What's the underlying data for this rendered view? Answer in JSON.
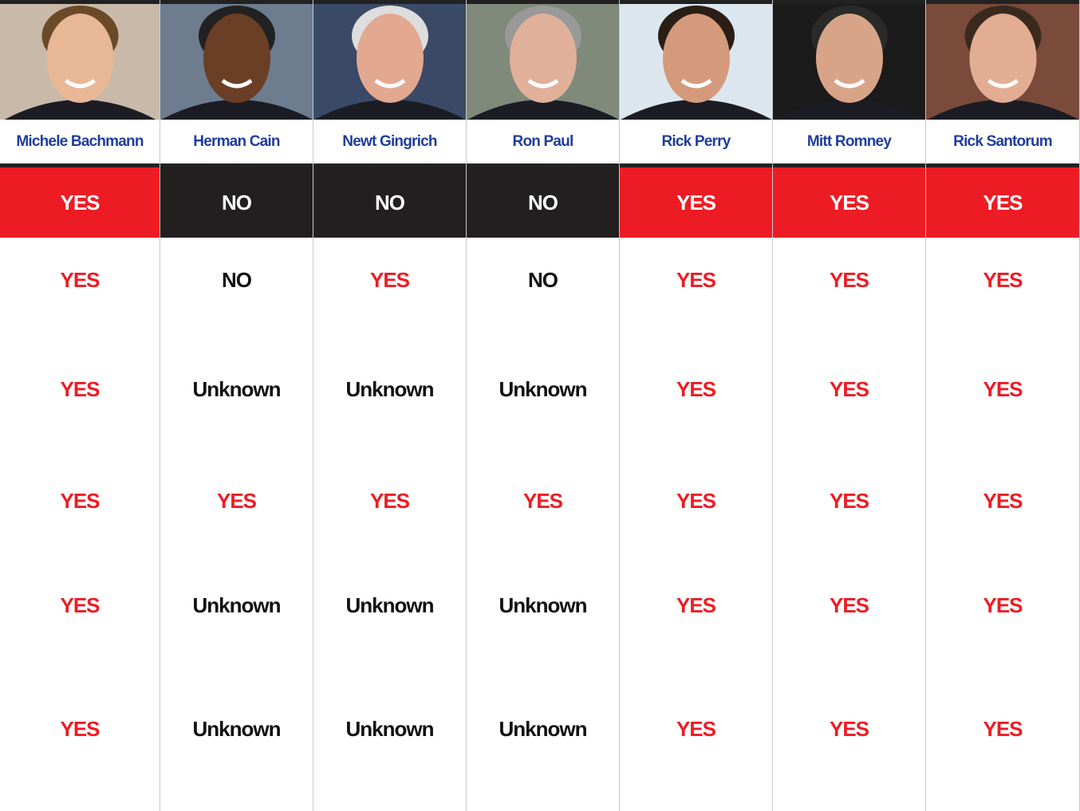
{
  "columns": [
    "Michele Bachmann",
    "Herman Cain",
    "Newt Gingrich",
    "Ron Paul",
    "Rick Perry",
    "Mitt Romney",
    "Rick Santorum"
  ],
  "rows": [
    {
      "filled": true,
      "cells": [
        {
          "text": "YES",
          "color": "#ed1c24"
        },
        {
          "text": "NO",
          "color": "#231f20"
        },
        {
          "text": "NO",
          "color": "#231f20"
        },
        {
          "text": "NO",
          "color": "#231f20"
        },
        {
          "text": "YES",
          "color": "#ed1c24"
        },
        {
          "text": "YES",
          "color": "#ed1c24"
        },
        {
          "text": "YES",
          "color": "#ed1c24"
        }
      ]
    },
    {
      "filled": false,
      "cells": [
        {
          "text": "YES",
          "color": "#ed1c24"
        },
        {
          "text": "NO",
          "color": "#111111"
        },
        {
          "text": "YES",
          "color": "#ed1c24"
        },
        {
          "text": "NO",
          "color": "#111111"
        },
        {
          "text": "YES",
          "color": "#ed1c24"
        },
        {
          "text": "YES",
          "color": "#ed1c24"
        },
        {
          "text": "YES",
          "color": "#ed1c24"
        }
      ]
    },
    {
      "filled": false,
      "cells": [
        {
          "text": "YES",
          "color": "#ed1c24"
        },
        {
          "text": "Unknown",
          "color": "#111111"
        },
        {
          "text": "Unknown",
          "color": "#111111"
        },
        {
          "text": "Unknown",
          "color": "#111111"
        },
        {
          "text": "YES",
          "color": "#ed1c24"
        },
        {
          "text": "YES",
          "color": "#ed1c24"
        },
        {
          "text": "YES",
          "color": "#ed1c24"
        }
      ]
    },
    {
      "filled": false,
      "cells": [
        {
          "text": "YES",
          "color": "#ed1c24"
        },
        {
          "text": "YES",
          "color": "#ed1c24"
        },
        {
          "text": "YES",
          "color": "#ed1c24"
        },
        {
          "text": "YES",
          "color": "#ed1c24"
        },
        {
          "text": "YES",
          "color": "#ed1c24"
        },
        {
          "text": "YES",
          "color": "#ed1c24"
        },
        {
          "text": "YES",
          "color": "#ed1c24"
        }
      ]
    },
    {
      "filled": false,
      "cells": [
        {
          "text": "YES",
          "color": "#ed1c24"
        },
        {
          "text": "Unknown",
          "color": "#111111"
        },
        {
          "text": "Unknown",
          "color": "#111111"
        },
        {
          "text": "Unknown",
          "color": "#111111"
        },
        {
          "text": "YES",
          "color": "#ed1c24"
        },
        {
          "text": "YES",
          "color": "#ed1c24"
        },
        {
          "text": "YES",
          "color": "#ed1c24"
        }
      ]
    },
    {
      "filled": false,
      "cells": [
        {
          "text": "YES",
          "color": "#ed1c24"
        },
        {
          "text": "Unknown",
          "color": "#111111"
        },
        {
          "text": "Unknown",
          "color": "#111111"
        },
        {
          "text": "Unknown",
          "color": "#111111"
        },
        {
          "text": "YES",
          "color": "#ed1c24"
        },
        {
          "text": "YES",
          "color": "#ed1c24"
        },
        {
          "text": "YES",
          "color": "#ed1c24"
        }
      ]
    }
  ]
}
